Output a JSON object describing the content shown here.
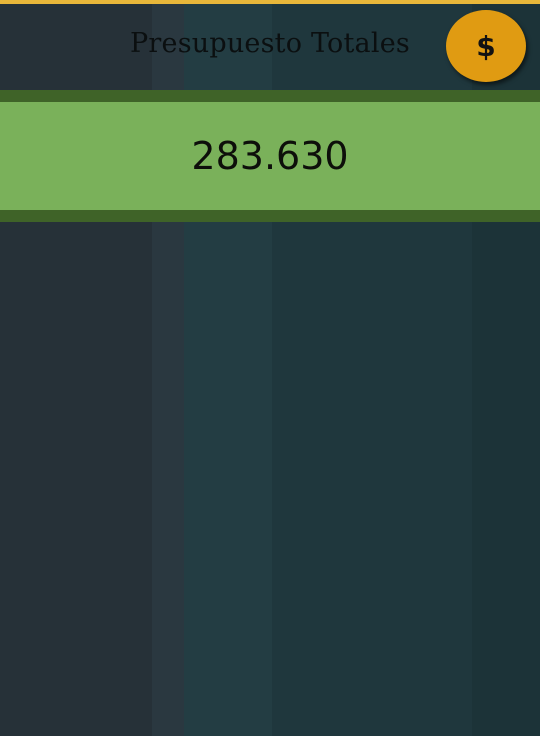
{
  "header": {
    "title": "Presupuesto Totales",
    "action_icon": "dollar-icon",
    "action_label": "$"
  },
  "summary": {
    "total": "283.630"
  },
  "colors": {
    "accent": "#e8b73a",
    "coin": "#e09b12",
    "band_dark": "#3f6328",
    "band_light": "#7ab15a"
  }
}
